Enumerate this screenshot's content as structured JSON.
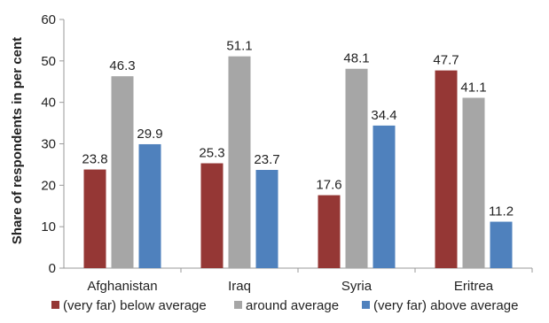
{
  "chart_data": {
    "type": "bar",
    "categories": [
      "Afghanistan",
      "Iraq",
      "Syria",
      "Eritrea"
    ],
    "series": [
      {
        "name": "(very far) below average",
        "values": [
          23.8,
          25.3,
          17.6,
          47.7
        ],
        "color": "#953735"
      },
      {
        "name": "around average",
        "values": [
          46.3,
          51.1,
          48.1,
          41.1
        ],
        "color": "#a6a6a6"
      },
      {
        "name": "(very far) above average",
        "values": [
          29.9,
          23.7,
          34.4,
          11.2
        ],
        "color": "#4f81bd"
      }
    ],
    "data_labels": [
      [
        "23.8",
        "25.3",
        "17.6",
        "47.7"
      ],
      [
        "46.3",
        "51.1",
        "48.1",
        "41.1"
      ],
      [
        "29.9",
        "23.7",
        "34.4",
        "11.2"
      ]
    ],
    "ylabel": "Share of respondents in per cent",
    "xlabel": "",
    "ylim": [
      0,
      60
    ],
    "yticks": [
      "0",
      "10",
      "20",
      "30",
      "40",
      "50",
      "60"
    ],
    "grid": false,
    "legend_position": "bottom"
  }
}
